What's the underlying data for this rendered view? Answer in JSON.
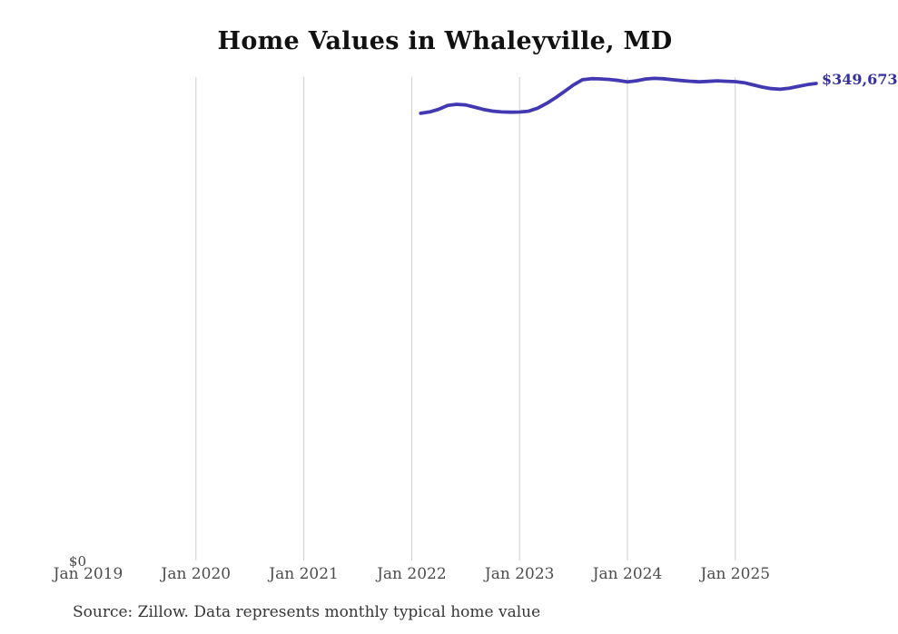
{
  "title": "Home Values in Whaleyville, MD",
  "source_note": "Source: Zillow. Data represents monthly typical home value",
  "chart_data": {
    "type": "line",
    "title": "Home Values in Whaleyville, MD",
    "series_name": "Monthly typical home value",
    "unit": "USD",
    "x": [
      "2022-02",
      "2022-03",
      "2022-04",
      "2022-05",
      "2022-06",
      "2022-07",
      "2022-08",
      "2022-09",
      "2022-10",
      "2022-11",
      "2022-12",
      "2023-01",
      "2023-02",
      "2023-03",
      "2023-04",
      "2023-05",
      "2023-06",
      "2023-07",
      "2023-08",
      "2023-09",
      "2023-10",
      "2023-11",
      "2023-12",
      "2024-01",
      "2024-02",
      "2024-03",
      "2024-04",
      "2024-05",
      "2024-06",
      "2024-07",
      "2024-08",
      "2024-09",
      "2024-10",
      "2024-11",
      "2024-12",
      "2025-01",
      "2025-02",
      "2025-03",
      "2025-04",
      "2025-05",
      "2025-06",
      "2025-07",
      "2025-08",
      "2025-09",
      "2025-10"
    ],
    "values": [
      327800,
      328800,
      330700,
      333500,
      334400,
      333900,
      332300,
      330600,
      329400,
      328800,
      328600,
      328700,
      329300,
      331500,
      335000,
      339200,
      343800,
      348600,
      352400,
      353200,
      353000,
      352600,
      351900,
      350800,
      351600,
      352900,
      353400,
      353100,
      352400,
      351800,
      351300,
      350900,
      351200,
      351600,
      351300,
      351000,
      350200,
      348600,
      347000,
      345900,
      345400,
      346200,
      347500,
      348800,
      349673
    ],
    "end_label": "$349,673",
    "latest_value": 349673,
    "y_zero_label": "$0",
    "x_tick_labels": [
      "Jan 2019",
      "Jan 2020",
      "Jan 2021",
      "Jan 2022",
      "Jan 2023",
      "Jan 2024",
      "Jan 2025"
    ],
    "x_axis_years": [
      2019,
      2020,
      2021,
      2022,
      2023,
      2024,
      2025
    ],
    "gridline_years": [
      2020,
      2021,
      2022,
      2023,
      2024,
      2025
    ],
    "ylim": [
      0,
      355000
    ],
    "grid": "vertical-yearly",
    "legend": "none",
    "line_color": "#4239b2",
    "label_color": "#35309f",
    "grid_color": "#cccccc",
    "axis_text_color": "#4d4d4d"
  }
}
